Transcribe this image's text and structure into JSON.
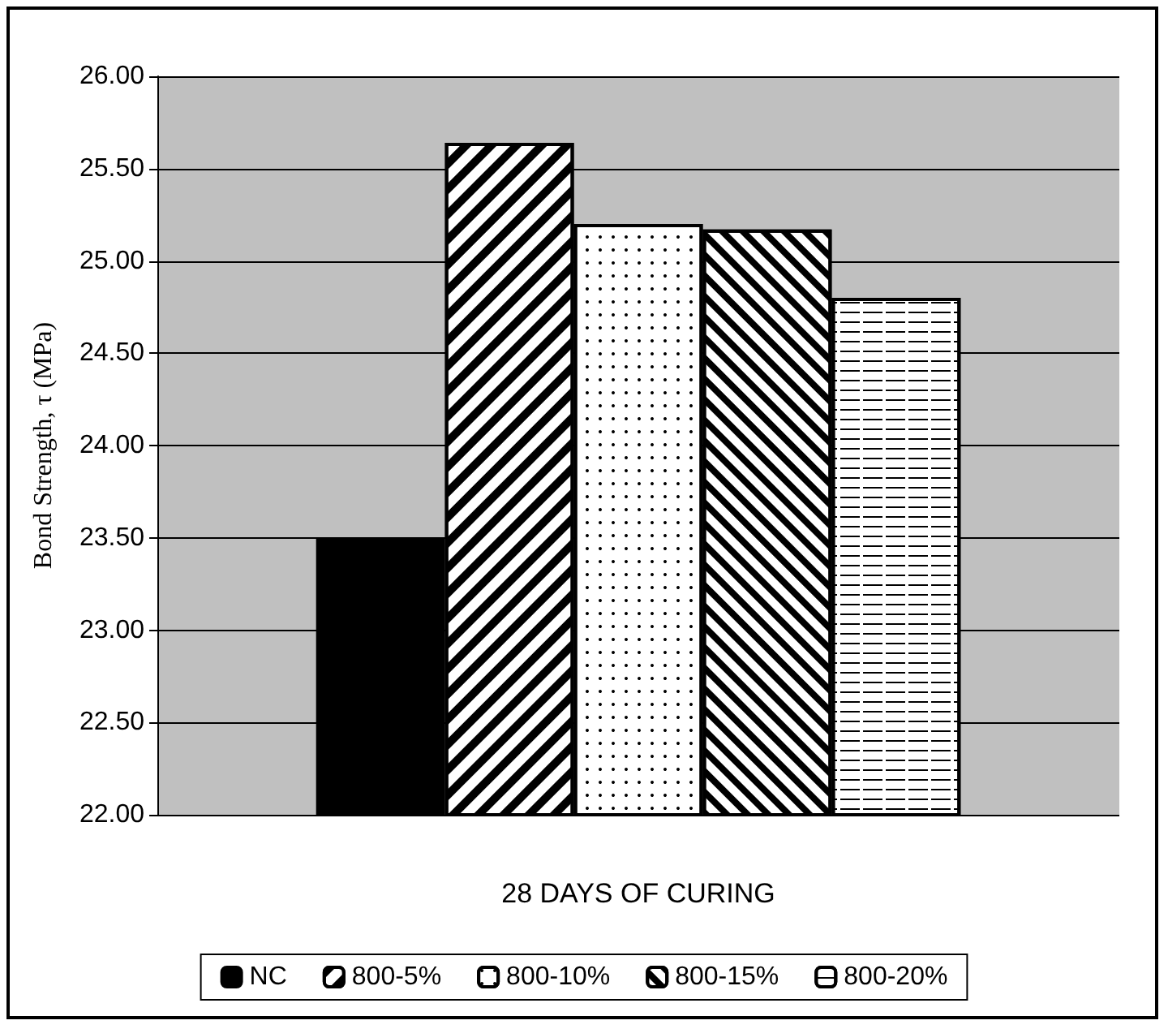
{
  "chart_data": {
    "type": "bar",
    "ylabel": "Bond Strength, τ (MPa)",
    "categories": [
      "28 DAYS OF CURING"
    ],
    "series": [
      {
        "name": "NC",
        "color": "#000000",
        "values": [
          23.5
        ]
      },
      {
        "name": "800-5%",
        "color": "#ffffff",
        "values": [
          25.64
        ]
      },
      {
        "name": "800-10%",
        "color": "#ffffff",
        "values": [
          25.2
        ]
      },
      {
        "name": "800-15%",
        "color": "#ffffff",
        "values": [
          25.17
        ]
      },
      {
        "name": "800-20%",
        "color": "#ffffff",
        "values": [
          24.8
        ]
      }
    ],
    "ylim": [
      22,
      26
    ],
    "yticks": [
      {
        "value": 22,
        "label": "22.00"
      },
      {
        "value": 22.5,
        "label": "22.50"
      },
      {
        "value": 23,
        "label": "23.00"
      },
      {
        "value": 23.5,
        "label": "23.50"
      },
      {
        "value": 24,
        "label": "24.00"
      },
      {
        "value": 24.5,
        "label": "24.50"
      },
      {
        "value": 25,
        "label": "25.00"
      },
      {
        "value": 25.5,
        "label": "25.50"
      },
      {
        "value": 26,
        "label": "26.00"
      }
    ],
    "grid": "y",
    "legend": "bottom"
  }
}
